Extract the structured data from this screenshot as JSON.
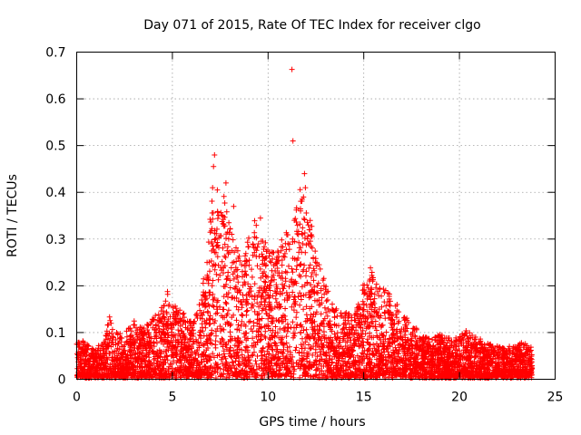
{
  "chart_data": {
    "type": "scatter",
    "title": "Day 071 of 2015, Rate Of TEC Index for receiver clgo",
    "xlabel": "GPS time / hours",
    "ylabel": "ROTI / TECUs",
    "xlim": [
      0,
      25
    ],
    "ylim": [
      0,
      0.7
    ],
    "xticks": [
      0,
      5,
      10,
      15,
      20,
      25
    ],
    "xtick_labels": [
      "0",
      "5",
      "10",
      "15",
      "20",
      "25"
    ],
    "yticks": [
      0,
      0.1,
      0.2,
      0.3,
      0.4,
      0.5,
      0.6,
      0.7
    ],
    "ytick_labels": [
      "0",
      "0.1",
      "0.2",
      "0.3",
      "0.4",
      "0.5",
      "0.6",
      "0.7"
    ],
    "grid": true,
    "marker": "+",
    "color": "#ff0000",
    "x_data_range": [
      0,
      23.8
    ],
    "envelope": {
      "description": "approximate upper envelope of the dense ROTI point cloud by hour",
      "x": [
        0,
        0.5,
        1,
        1.5,
        1.7,
        2,
        2.5,
        3,
        3.5,
        4,
        4.5,
        4.8,
        5,
        5.5,
        6,
        6.5,
        6.9,
        7.1,
        7.3,
        7.6,
        7.9,
        8.2,
        8.6,
        9,
        9.3,
        9.6,
        10,
        10.4,
        10.8,
        11.2,
        11.6,
        11.9,
        12.2,
        12.6,
        13,
        13.5,
        14,
        14.5,
        15,
        15.3,
        15.6,
        16,
        16.5,
        17,
        17.5,
        18,
        18.5,
        19,
        19.5,
        20,
        20.5,
        21,
        21.5,
        22,
        22.5,
        23,
        23.5,
        23.8
      ],
      "y_upper": [
        0.09,
        0.07,
        0.06,
        0.08,
        0.14,
        0.1,
        0.09,
        0.12,
        0.1,
        0.13,
        0.15,
        0.19,
        0.16,
        0.14,
        0.12,
        0.17,
        0.3,
        0.4,
        0.35,
        0.4,
        0.37,
        0.3,
        0.26,
        0.3,
        0.34,
        0.3,
        0.28,
        0.27,
        0.31,
        0.3,
        0.43,
        0.38,
        0.34,
        0.25,
        0.2,
        0.15,
        0.14,
        0.13,
        0.2,
        0.24,
        0.2,
        0.19,
        0.18,
        0.14,
        0.11,
        0.09,
        0.08,
        0.09,
        0.08,
        0.09,
        0.1,
        0.08,
        0.07,
        0.07,
        0.06,
        0.07,
        0.07,
        0.06
      ]
    },
    "outliers": [
      {
        "x": 7.2,
        "y": 0.48
      },
      {
        "x": 7.15,
        "y": 0.455
      },
      {
        "x": 7.1,
        "y": 0.41
      },
      {
        "x": 7.35,
        "y": 0.405
      },
      {
        "x": 7.8,
        "y": 0.42
      },
      {
        "x": 8.2,
        "y": 0.37
      },
      {
        "x": 9.6,
        "y": 0.345
      },
      {
        "x": 11.25,
        "y": 0.663
      },
      {
        "x": 11.3,
        "y": 0.51
      },
      {
        "x": 11.9,
        "y": 0.44
      },
      {
        "x": 11.95,
        "y": 0.41
      },
      {
        "x": 11.85,
        "y": 0.39
      },
      {
        "x": 11.7,
        "y": 0.36
      },
      {
        "x": 12.2,
        "y": 0.34
      },
      {
        "x": 12.1,
        "y": 0.33
      }
    ]
  }
}
